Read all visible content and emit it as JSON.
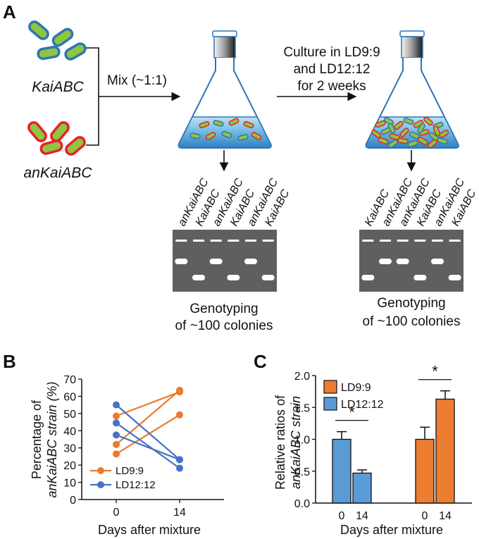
{
  "panel_a": {
    "letter": "A",
    "strain_top": "KaiABC",
    "strain_bottom": "anKaiABC",
    "mix_label": "Mix  (~1:1)",
    "culture_lines": [
      "Culture in LD9:9",
      "and LD12:12",
      "for 2 weeks"
    ],
    "gel_left_lanes": [
      "anKaiABC",
      "KaiABC",
      "anKaiABC",
      "KaiABC",
      "anKaiABC",
      "KaiABC"
    ],
    "gel_right_lanes": [
      "KaiABC",
      "anKaiABC",
      "anKaiABC",
      "KaiABC",
      "anKaiABC",
      "KaiABC"
    ],
    "genotyping_lines": [
      "Genotyping",
      "of ~100 colonies"
    ],
    "colors": {
      "green_cell": "#8dc63f",
      "blue_outline": "#2e75b6",
      "red_outline": "#e8212b",
      "flask_liquid": "#4a9fd8",
      "gel": "#5f5f5f"
    }
  },
  "panel_b": {
    "letter": "B",
    "chart_data": {
      "type": "line",
      "ylabel_line1": "Percentage of",
      "ylabel_line2": "anKaiABC strain (%)",
      "xlabel": "Days after mixture",
      "x_ticks": [
        "0",
        "14"
      ],
      "y_ticks": [
        "0",
        "10",
        "20",
        "30",
        "40",
        "50",
        "60",
        "70"
      ],
      "ylim": [
        0,
        70
      ],
      "legend": "bottom-left",
      "series": [
        {
          "name": "LD9:9",
          "color": "#ec7a30",
          "pairs": [
            [
              26.5,
              49.2
            ],
            [
              32,
              63.5
            ],
            [
              48.5,
              62.5
            ]
          ]
        },
        {
          "name": "LD12:12",
          "color": "#4472c4",
          "pairs": [
            [
              55,
              23.2
            ],
            [
              44.5,
              18.2
            ],
            [
              37.5,
              23.2
            ]
          ]
        }
      ]
    }
  },
  "panel_c": {
    "letter": "C",
    "chart_data": {
      "type": "bar",
      "ylabel_line1": "Relative ratios of",
      "ylabel_line2": "anKaiABC strain",
      "xlabel": "Days after mixture",
      "y_ticks": [
        "0.0",
        "0.5",
        "1.0",
        "1.5",
        "2.0"
      ],
      "ylim": [
        0,
        2.0
      ],
      "legend": "top-left",
      "significance": "*",
      "series": [
        {
          "name": "LD12:12",
          "color": "#5b9bd5",
          "categories": [
            "0",
            "14"
          ],
          "values": [
            1.0,
            0.47
          ],
          "errors": [
            0.12,
            0.05
          ]
        },
        {
          "name": "LD9:9",
          "color": "#ed7d31",
          "categories": [
            "0",
            "14"
          ],
          "values": [
            1.0,
            1.63
          ],
          "errors": [
            0.19,
            0.13
          ]
        }
      ],
      "legend_order": [
        "LD9:9",
        "LD12:12"
      ]
    }
  }
}
